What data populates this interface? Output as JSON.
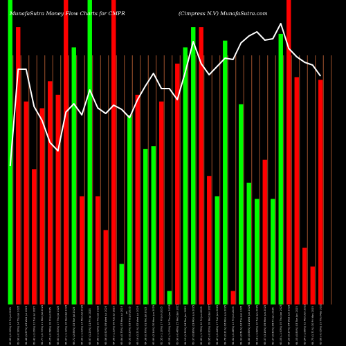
{
  "header": {
    "left_title": "MunafaSutra  Money Flow  Charts for CMPR",
    "right_title": "(Cimpress N.V) MunafaSutra.com"
  },
  "chart_data": {
    "type": "bar",
    "title": "MunafaSutra  Money Flow  Charts for CMPR",
    "subtitle": "(Cimpress N.V) MunafaSutra.com",
    "axis_mid_label": "5",
    "colors": {
      "up": "#00ff00",
      "down": "#ff0000",
      "grid": "#a0522d",
      "line": "#ffffff",
      "background": "#000000"
    },
    "categories": [
      "25 Fri Jul 2025",
      "24 Thu Jul 2025",
      "23 Wed Jul 2025",
      "22 Tue Jul 2025",
      "21 Mon Jul 2025",
      "18 Fri Jul 2025",
      "17 Thu Jul 2025",
      "16 Wed Jul 2025",
      "15 Tue Jul 2025",
      "14 Mon Jul 2025",
      "11 Fri Jul 2025",
      "10 Thu Jul 2025",
      "09 Wed Jul 2025",
      "08 Tue Jul 2025",
      "07 Mon Jul 2025",
      "03 Thu Jul 2025",
      "02 Wed Jul 2025",
      "01 Tue Jul 2025",
      "30 Mon Jun 2025",
      "27 Fri Jun 2025",
      "26 Thu Jun 2025",
      "25 Wed Jun 2025",
      "24 Tue Jun 2025",
      "23 Mon Jun 2025",
      "20 Fri Jun 2025",
      "18 Wed Jun 2025",
      "17 Tue Jun 2025",
      "16 Mon Jun 2025",
      "13 Fri Jun 2025",
      "12 Thu Jun 2025",
      "11 Wed Jun 2025",
      "10 Tue Jun 2025",
      "09 Mon Jun 2025",
      "06 Fri Jun 2025",
      "05 Thu Jun 2025",
      "04 Wed Jun 2025",
      "03 Tue Jun 2025",
      "02 Mon Jun 2025",
      "30 Fri May 2025",
      "29 Thu May 2025"
    ],
    "x_tick_labels": [
      "63.89 (-0.02%)",
      "63.90 (-0.90%)",
      "64.48 (1.67%)",
      "63.42 (-2.09%)",
      "64.77 (-0.73%)",
      "65.25 (-0.58%)",
      "65.63 (-0.51%)",
      "65.97 (-1.12%)",
      "66.72 (2.66%)",
      "64.99 (-1.03%)",
      "65.67 (1.20%)",
      "64.89 (-1.02%)",
      "65.56 (0.92%)",
      "64.96 (-1.33%)",
      "65.84 (0.75%)",
      "65.35 (0.29%)",
      "65.16 (1.21%)",
      "64.38 (0.76%)",
      "63.89 (2.14%)",
      "62.55 (-1.10%)",
      "63.25 (-1.01%)",
      "63.90 (-0.46%)",
      "64.19 (1.30%)",
      "63.37 (0.86%)",
      "62.83 (-1.75%)",
      "63.95 (-0.81%)",
      "64.47 (-0.44%)",
      "64.76 (0.21%)",
      "64.62 (-0.48%)",
      "64.93 (0.51%)",
      "64.60 (0.66%)",
      "64.18 (-1.82%)",
      "65.37 (3.16%)",
      "63.37 (0.50%)",
      "63.05 (-1.93%)",
      "64.29 (0.37%)",
      "64.05 (0.80%)",
      "63.54 (-1.86%)",
      "64.75 (1.71%)",
      "63.66 (-0.05%)"
    ],
    "series": [
      {
        "values": [
          225,
          205,
          150,
          100,
          145,
          165,
          155,
          225,
          190,
          80,
          225,
          80,
          55,
          225,
          30,
          140,
          155,
          115,
          117,
          150,
          10,
          178,
          190,
          205,
          205,
          95,
          80,
          195,
          10,
          148,
          90,
          78,
          107,
          78,
          200,
          225,
          168,
          42,
          28,
          166
        ],
        "directions": [
          "up",
          "down",
          "down",
          "down",
          "down",
          "down",
          "down",
          "down",
          "up",
          "down",
          "up",
          "down",
          "down",
          "down",
          "up",
          "up",
          "down",
          "up",
          "up",
          "down",
          "up",
          "down",
          "up",
          "up",
          "down",
          "down",
          "up",
          "up",
          "down",
          "up",
          "up",
          "up",
          "down",
          "up",
          "up",
          "down",
          "down",
          "down",
          "down",
          "down"
        ]
      },
      {
        "values": [
          100,
          170,
          170,
          143,
          133,
          117,
          111,
          139,
          145,
          137,
          155,
          142,
          138,
          144,
          141,
          135,
          148,
          158,
          167,
          156,
          156,
          148,
          168,
          190,
          174,
          166,
          172,
          178,
          177,
          189,
          194,
          197,
          191,
          192,
          203,
          185,
          179,
          175,
          173,
          165
        ]
      }
    ],
    "ylim": [
      0,
      225
    ]
  }
}
